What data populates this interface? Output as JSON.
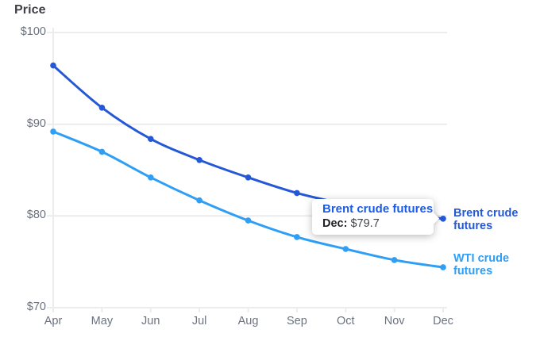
{
  "chart": {
    "title": "Price",
    "y_tick_labels": [
      "$100",
      "$90",
      "$80",
      "$70"
    ],
    "x_tick_labels": [
      "Apr",
      "May",
      "Jun",
      "Jul",
      "Aug",
      "Sep",
      "Oct",
      "Nov",
      "Dec"
    ]
  },
  "chart_data": {
    "type": "line",
    "title": "Price",
    "x": [
      "Apr",
      "May",
      "Jun",
      "Jul",
      "Aug",
      "Sep",
      "Oct",
      "Nov",
      "Dec"
    ],
    "series": [
      {
        "name": "Brent crude futures",
        "color": "#2458d6",
        "values": [
          96.4,
          91.8,
          88.4,
          86.1,
          84.2,
          82.5,
          81.3,
          80.4,
          79.7
        ]
      },
      {
        "name": "WTI crude futures",
        "color": "#2f9ef5",
        "values": [
          89.2,
          87.0,
          84.2,
          81.7,
          79.5,
          77.7,
          76.4,
          75.2,
          74.4
        ]
      }
    ],
    "ylim": [
      70,
      100
    ],
    "y_ticks": [
      100,
      90,
      80,
      70
    ],
    "ylabel": "Price",
    "xlabel": "",
    "grid": "horizontal",
    "legend_position": "right-end-labels",
    "annotation": "Tooltip shown on Brent crude futures at Dec: $79.7"
  },
  "tooltip": {
    "series": "Brent crude futures",
    "label": "Dec:",
    "value": "$79.7"
  },
  "legend": {
    "brent": "Brent crude futures",
    "wti": "WTI crude futures"
  },
  "colors": {
    "brent": "#2458d6",
    "wti": "#2f9ef5",
    "grid": "#ececec",
    "axis_text": "#6b7280",
    "title_text": "#3f3f46",
    "tooltip_title": "#1a5ce8"
  }
}
